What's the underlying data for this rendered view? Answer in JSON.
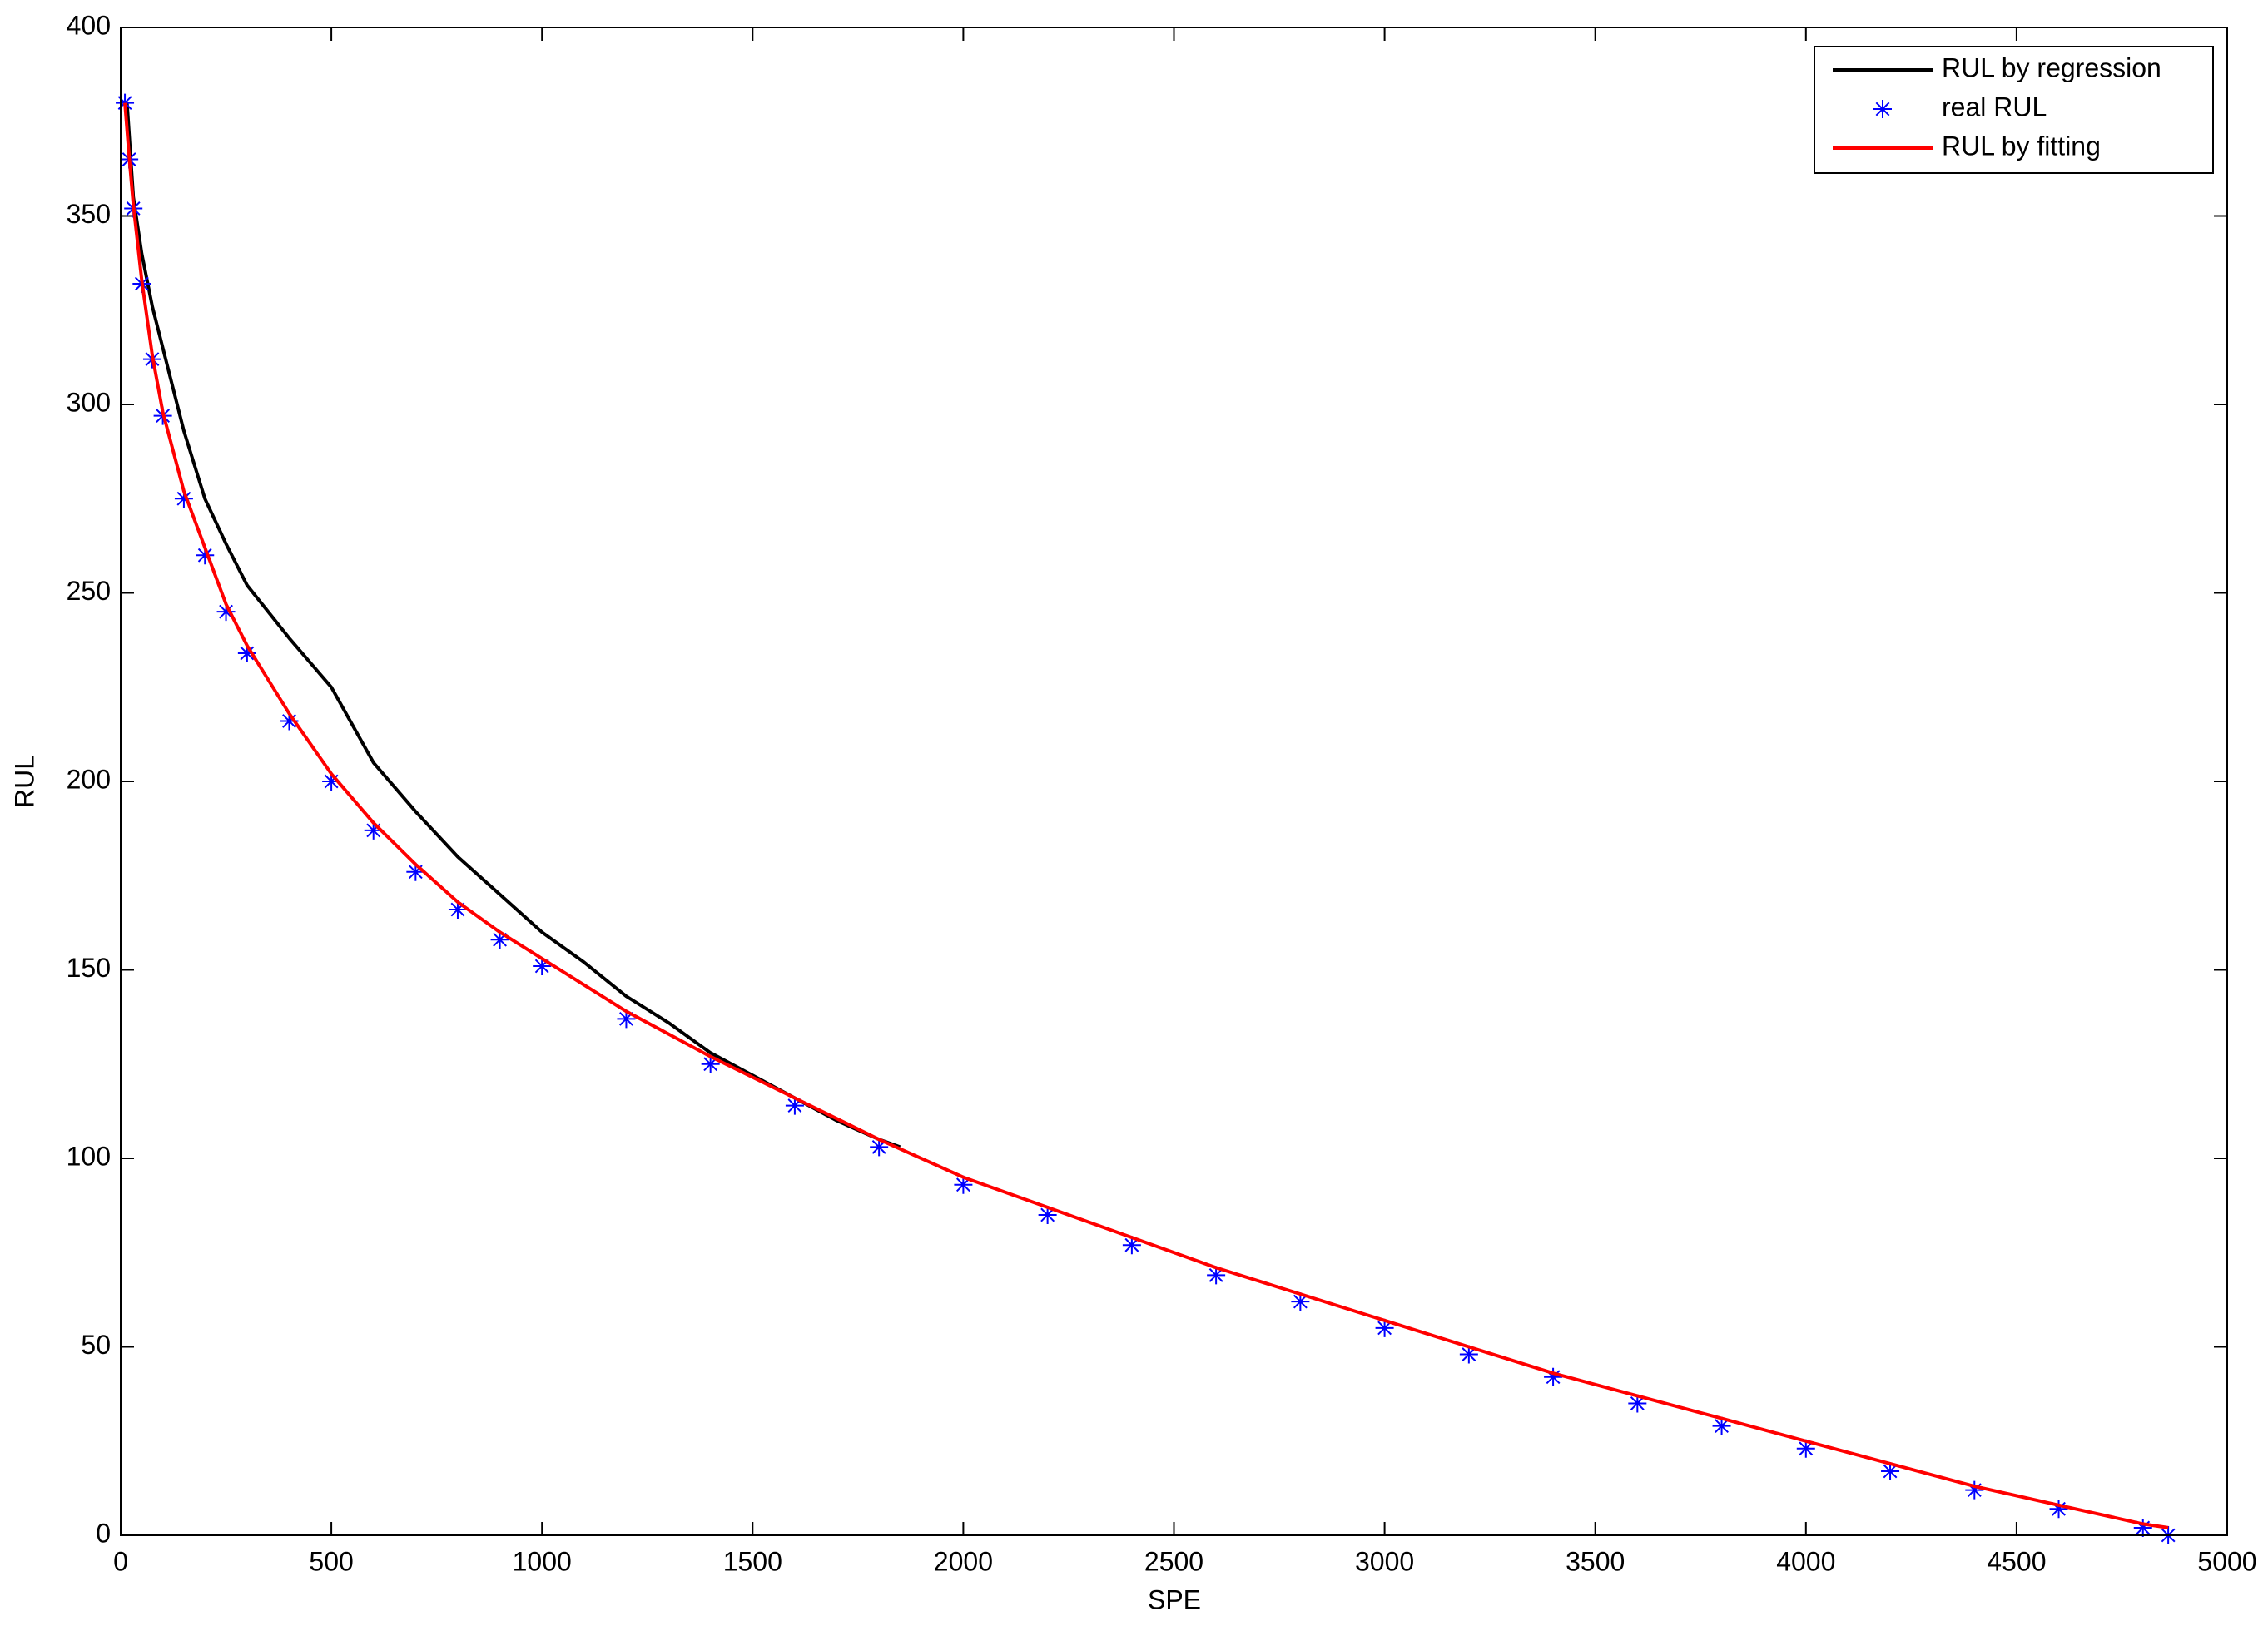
{
  "chart_data": {
    "type": "line",
    "xlabel": "SPE",
    "ylabel": "RUL",
    "xlim": [
      0,
      5000
    ],
    "xticks": [
      0,
      500,
      1000,
      1500,
      2000,
      2500,
      3000,
      3500,
      4000,
      4500,
      5000
    ],
    "ylim": [
      0,
      400
    ],
    "yticks": [
      0,
      50,
      100,
      150,
      200,
      250,
      300,
      350,
      400
    ],
    "grid": false,
    "legend": "upper right",
    "series": [
      {
        "name": "RUL by regression",
        "color": "#000000",
        "marker": "none",
        "x": [
          15,
          30,
          50,
          75,
          100,
          150,
          200,
          250,
          300,
          350,
          400,
          500,
          600,
          700,
          800,
          900,
          1000,
          1100,
          1200,
          1300,
          1400,
          1500,
          1600,
          1700,
          1800,
          1850
        ],
        "values": [
          380,
          355,
          340,
          326,
          315,
          293,
          275,
          263,
          252,
          245,
          238,
          225,
          205,
          192,
          180,
          170,
          160,
          152,
          143,
          136,
          128,
          122,
          116,
          110,
          105,
          103
        ]
      },
      {
        "name": "real RUL",
        "color": "#0000ff",
        "marker": "*",
        "x": [
          10,
          20,
          30,
          50,
          75,
          100,
          150,
          200,
          250,
          300,
          400,
          500,
          600,
          700,
          800,
          900,
          1000,
          1200,
          1400,
          1600,
          1800,
          2000,
          2200,
          2400,
          2600,
          2800,
          3000,
          3200,
          3400,
          3600,
          3800,
          4000,
          4200,
          4400,
          4600,
          4800,
          4860
        ],
        "values": [
          380,
          365,
          352,
          332,
          312,
          297,
          275,
          260,
          245,
          234,
          216,
          200,
          187,
          176,
          166,
          158,
          151,
          137,
          125,
          114,
          103,
          93,
          85,
          77,
          69,
          62,
          55,
          48,
          42,
          35,
          29,
          23,
          17,
          12,
          7,
          2,
          0
        ]
      },
      {
        "name": "RUL by fitting",
        "color": "#ff0000",
        "marker": "none",
        "x": [
          10,
          20,
          30,
          50,
          75,
          100,
          150,
          200,
          250,
          300,
          400,
          500,
          600,
          700,
          800,
          900,
          1000,
          1200,
          1400,
          1600,
          1800,
          2000,
          2200,
          2400,
          2600,
          2800,
          3000,
          3200,
          3400,
          3600,
          3800,
          4000,
          4200,
          4400,
          4600,
          4800,
          4860
        ],
        "values": [
          380,
          366,
          353,
          333,
          313,
          298,
          277,
          262,
          247,
          236,
          218,
          202,
          189,
          178,
          168,
          160,
          153,
          139,
          127,
          116,
          105,
          95,
          87,
          79,
          71,
          64,
          57,
          50,
          43,
          37,
          31,
          25,
          19,
          13,
          8,
          3,
          2
        ]
      }
    ]
  }
}
